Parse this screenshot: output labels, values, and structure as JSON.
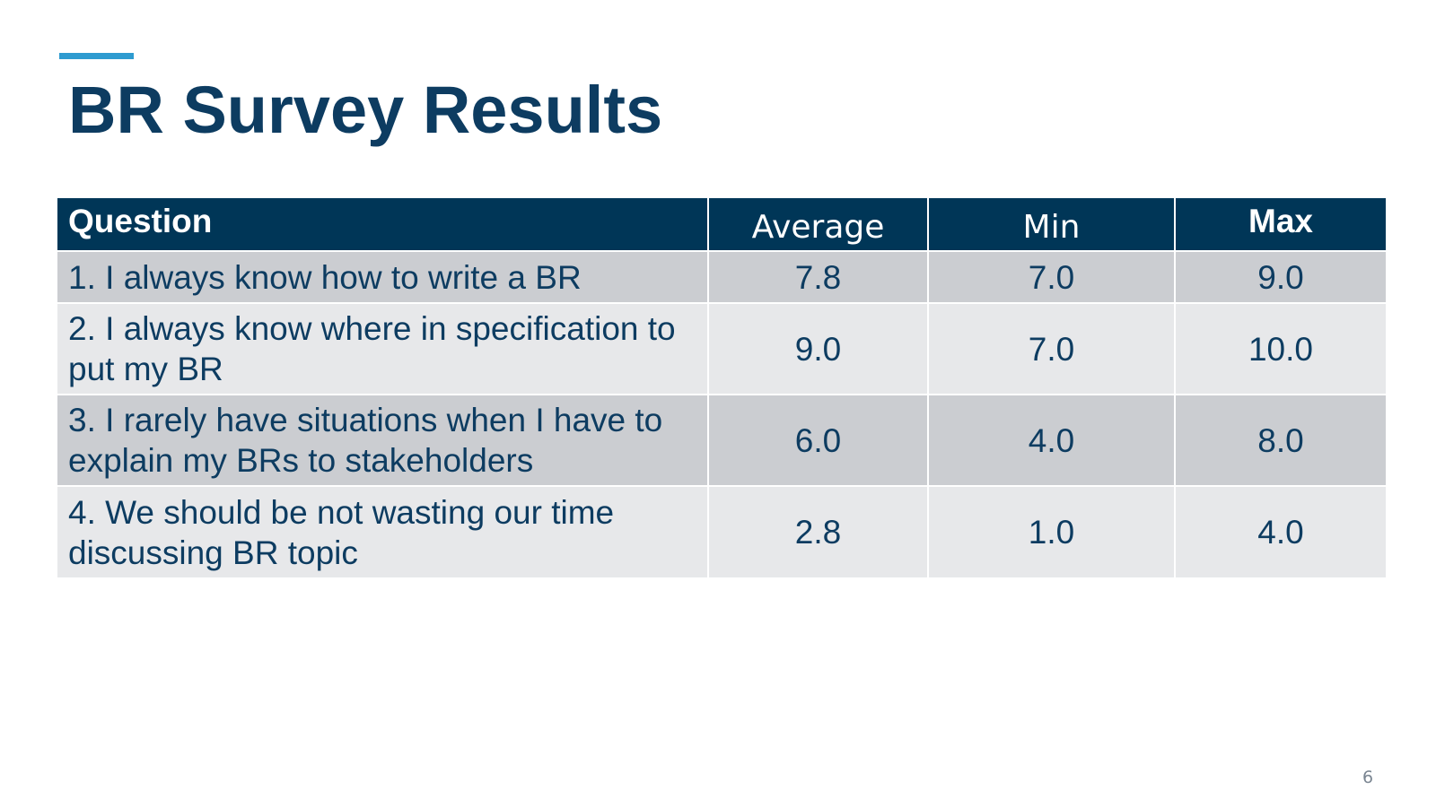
{
  "slide": {
    "title": "BR Survey Results",
    "page_number": "6",
    "accent_color": "#2e9bd0",
    "title_color": "#0d3c61",
    "header_color": "#003657"
  },
  "table": {
    "headers": {
      "question": "Question",
      "average": "Average",
      "min": "Min",
      "max": "Max"
    },
    "rows": [
      {
        "question": "1. I always know how to write a BR",
        "average": "7.8",
        "min": "7.0",
        "max": "9.0"
      },
      {
        "question": "2. I always know where in specification to put my BR",
        "average": "9.0",
        "min": "7.0",
        "max": "10.0"
      },
      {
        "question": "3. I rarely have situations when I have to explain my BRs to stakeholders",
        "average": "6.0",
        "min": "4.0",
        "max": "8.0"
      },
      {
        "question": "4. We should be not wasting our time discussing BR topic",
        "average": "2.8",
        "min": "1.0",
        "max": "4.0"
      }
    ]
  }
}
